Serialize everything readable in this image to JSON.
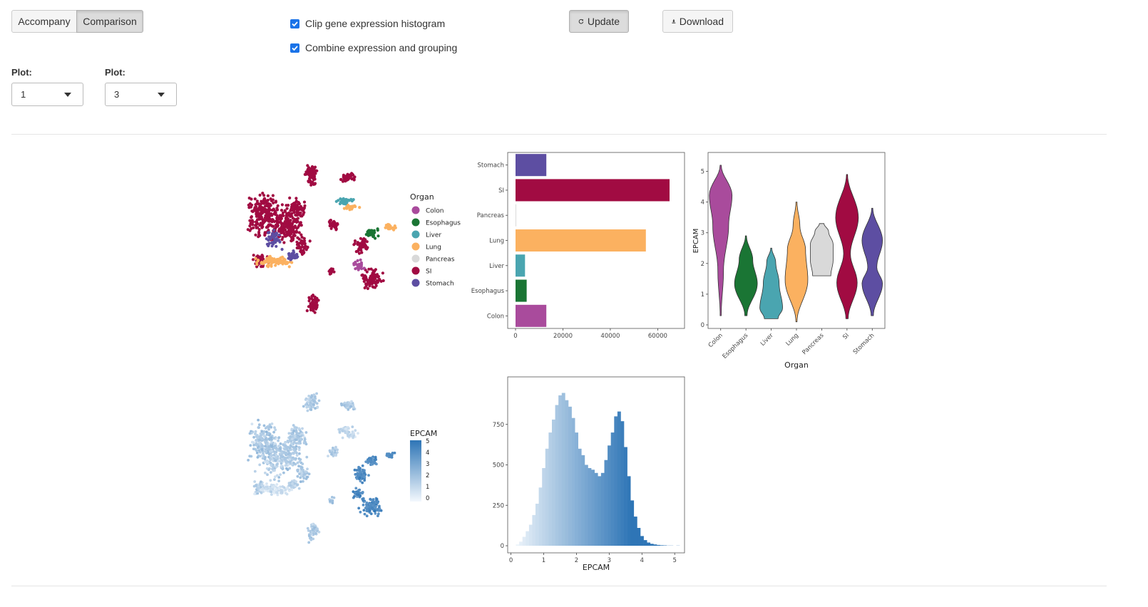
{
  "tabs": {
    "accompany": "Accompany",
    "comparison": "Comparison"
  },
  "options": {
    "clip": "Clip gene expression histogram",
    "combine": "Combine expression and grouping"
  },
  "actions": {
    "update": "Update",
    "download": "Download"
  },
  "selectors": [
    {
      "label": "Plot:",
      "value": "1"
    },
    {
      "label": "Plot:",
      "value": "3"
    }
  ],
  "colors": {
    "Colon": "#a94b9c",
    "Esophagus": "#1a7534",
    "Liver": "#4aa5b0",
    "Lung": "#fbb160",
    "Pancreas": "#d9d9d9",
    "SI": "#a10b42",
    "Stomach": "#5d4ea2"
  },
  "umap_legend": {
    "title": "Organ",
    "items": [
      "Colon",
      "Esophagus",
      "Liver",
      "Lung",
      "Pancreas",
      "SI",
      "Stomach"
    ]
  },
  "expr_legend": {
    "title": "EPCAM",
    "ticks": [
      "5",
      "4",
      "3",
      "2",
      "1",
      "0"
    ]
  },
  "chart_data": [
    {
      "type": "bar",
      "orientation": "horizontal",
      "categories": [
        "Stomach",
        "SI",
        "Pancreas",
        "Lung",
        "Liver",
        "Esophagus",
        "Colon"
      ],
      "values": [
        13000,
        65000,
        300,
        55000,
        4000,
        4700,
        13000
      ],
      "xticks": [
        "0",
        "20000",
        "40000",
        "60000"
      ],
      "xlim": [
        0,
        68000
      ],
      "xlabel": "",
      "ylabel": ""
    },
    {
      "type": "violin",
      "categories": [
        "Colon",
        "Esophagus",
        "Liver",
        "Lung",
        "Pancreas",
        "SI",
        "Stomach"
      ],
      "ranges": [
        [
          0.3,
          5.2
        ],
        [
          0.3,
          2.9
        ],
        [
          0.2,
          2.5
        ],
        [
          0.1,
          4.0
        ],
        [
          1.6,
          3.3
        ],
        [
          0.2,
          4.9
        ],
        [
          0.3,
          3.8
        ]
      ],
      "yticks": [
        "0",
        "1",
        "2",
        "3",
        "4",
        "5"
      ],
      "ylim": [
        0,
        5.5
      ],
      "xlabel": "Organ",
      "ylabel": "EPCAM"
    },
    {
      "type": "histogram",
      "bin_width": 0.1,
      "x_start": 0.15,
      "counts": [
        8,
        25,
        55,
        90,
        130,
        190,
        260,
        360,
        480,
        600,
        700,
        780,
        870,
        930,
        945,
        900,
        860,
        790,
        700,
        600,
        560,
        500,
        480,
        470,
        450,
        430,
        450,
        530,
        620,
        700,
        800,
        830,
        770,
        610,
        430,
        280,
        180,
        110,
        60,
        35,
        20,
        12,
        8,
        5,
        3,
        2,
        1,
        1,
        0,
        1
      ],
      "xticks": [
        "0",
        "1",
        "2",
        "3",
        "4",
        "5"
      ],
      "xlim": [
        -0.1,
        5.3
      ],
      "yticks": [
        "0",
        "250",
        "500",
        "750"
      ],
      "ylim": [
        0,
        1000
      ],
      "xlabel": "EPCAM",
      "ylabel": ""
    }
  ]
}
